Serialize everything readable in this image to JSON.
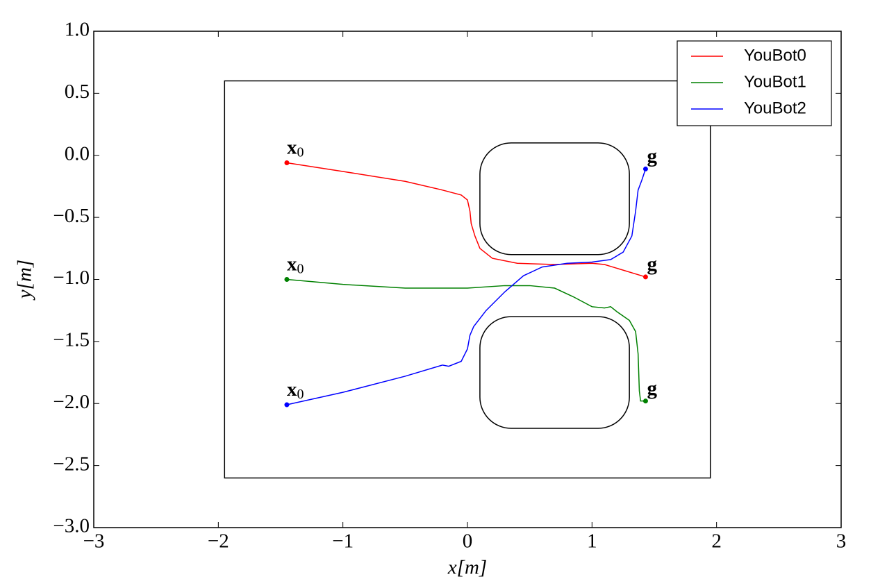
{
  "chart_data": {
    "type": "line",
    "xlabel": "x[m]",
    "ylabel": "y[m]",
    "xlim": [
      -3,
      3
    ],
    "ylim": [
      -3,
      1
    ],
    "xticks": [
      {
        "value": -3,
        "label": "−3"
      },
      {
        "value": -2,
        "label": "−2"
      },
      {
        "value": -1,
        "label": "−1"
      },
      0,
      1,
      2,
      3
    ],
    "yticks": [
      {
        "value": 1,
        "label": "1.0"
      },
      {
        "value": 0.5,
        "label": "0.5"
      },
      {
        "value": 0,
        "label": "0.0"
      },
      {
        "value": -0.5,
        "label": "−0.5"
      },
      {
        "value": -1,
        "label": "−1.0"
      },
      {
        "value": -1.5,
        "label": "−1.5"
      },
      {
        "value": -2,
        "label": "−2.0"
      },
      {
        "value": -2.5,
        "label": "−2.5"
      },
      {
        "value": -3,
        "label": "−3.0"
      }
    ],
    "grid": false,
    "legend": "upper-right",
    "start_label": "x",
    "start_label_sub": "0",
    "goal_label": "g",
    "boundary": {
      "xlim": [
        -1.95,
        1.95
      ],
      "ylim": [
        -2.6,
        0.6
      ]
    },
    "obstacles": [
      {
        "xlim": [
          0.1,
          1.3
        ],
        "ylim": [
          -0.8,
          0.1
        ]
      },
      {
        "xlim": [
          0.1,
          1.3
        ],
        "ylim": [
          -2.2,
          -1.3
        ]
      }
    ],
    "series": [
      {
        "name": "YouBot0",
        "color": "#ff0000",
        "x": [
          -1.45,
          -1.0,
          -0.5,
          -0.2,
          -0.05,
          0.0,
          0.02,
          0.03,
          0.06,
          0.1,
          0.2,
          0.4,
          0.7,
          1.0,
          1.1,
          1.2,
          1.43
        ],
        "values": [
          -0.06,
          -0.13,
          -0.21,
          -0.28,
          -0.32,
          -0.36,
          -0.45,
          -0.55,
          -0.65,
          -0.75,
          -0.83,
          -0.87,
          -0.88,
          -0.87,
          -0.88,
          -0.91,
          -0.98
        ]
      },
      {
        "name": "YouBot1",
        "color": "#008000",
        "x": [
          -1.45,
          -1.0,
          -0.5,
          0.0,
          0.3,
          0.5,
          0.7,
          0.85,
          1.0,
          1.1,
          1.15,
          1.2,
          1.3,
          1.35,
          1.37,
          1.38,
          1.39,
          1.43
        ],
        "values": [
          -1.0,
          -1.04,
          -1.07,
          -1.07,
          -1.05,
          -1.05,
          -1.07,
          -1.14,
          -1.22,
          -1.23,
          -1.22,
          -1.26,
          -1.33,
          -1.42,
          -1.6,
          -1.9,
          -1.98,
          -1.98
        ]
      },
      {
        "name": "YouBot2",
        "color": "#0000ff",
        "x": [
          -1.45,
          -1.0,
          -0.5,
          -0.2,
          -0.15,
          -0.05,
          0.0,
          0.02,
          0.05,
          0.15,
          0.3,
          0.45,
          0.6,
          0.8,
          1.0,
          1.15,
          1.25,
          1.32,
          1.35,
          1.37,
          1.4,
          1.43
        ],
        "values": [
          -2.01,
          -1.91,
          -1.78,
          -1.69,
          -1.7,
          -1.66,
          -1.56,
          -1.45,
          -1.38,
          -1.25,
          -1.1,
          -0.97,
          -0.9,
          -0.87,
          -0.86,
          -0.84,
          -0.78,
          -0.65,
          -0.45,
          -0.28,
          -0.2,
          -0.11
        ]
      }
    ]
  }
}
